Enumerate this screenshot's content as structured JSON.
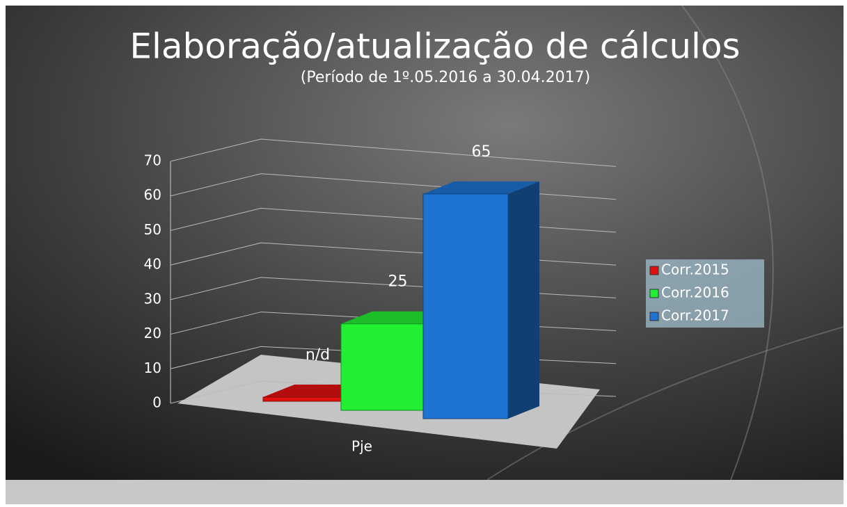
{
  "chart_data": {
    "type": "bar3d",
    "title": "Elaboração/atualização de cálculos",
    "subtitle": "(Período de 1º.05.2016  a  30.04.2017)",
    "categories": [
      "Pje"
    ],
    "series": [
      {
        "name": "Corr.2015",
        "color": "#e01010",
        "values": [
          null
        ],
        "value_labels": [
          "n/d"
        ]
      },
      {
        "name": "Corr.2016",
        "color": "#22ee33",
        "values": [
          25
        ]
      },
      {
        "name": "Corr.2017",
        "color": "#1e72d0",
        "values": [
          65
        ]
      }
    ],
    "ylim": [
      0,
      70
    ],
    "yticks": [
      0,
      10,
      20,
      30,
      40,
      50,
      60,
      70
    ],
    "grid": true,
    "legend": "right"
  }
}
